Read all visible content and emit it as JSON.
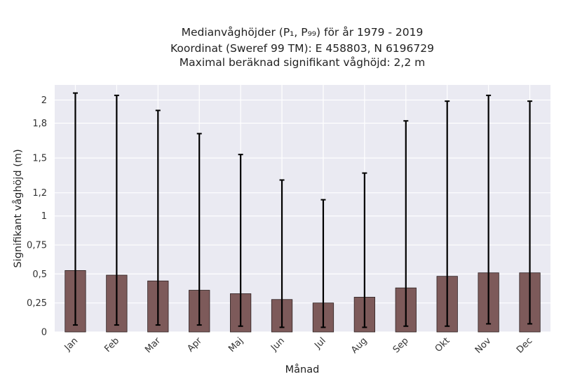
{
  "chart_data": {
    "type": "bar",
    "title_lines": [
      "Medianvåghöjder (P₁, P₉₉) för år 1979 - 2019",
      "Koordinat (Sweref 99 TM): E 458803, N 6196729",
      "Maximal beräknad signifikant våghöjd: 2,2 m"
    ],
    "xlabel": "Månad",
    "ylabel": "Signifikant våghöjd (m)",
    "categories": [
      "Jan",
      "Feb",
      "Mar",
      "Apr",
      "Maj",
      "Jun",
      "Jul",
      "Aug",
      "Sep",
      "Okt",
      "Nov",
      "Dec"
    ],
    "values": [
      0.53,
      0.49,
      0.44,
      0.36,
      0.33,
      0.28,
      0.25,
      0.3,
      0.38,
      0.48,
      0.51,
      0.51
    ],
    "error_low": [
      0.06,
      0.06,
      0.06,
      0.06,
      0.05,
      0.04,
      0.04,
      0.04,
      0.05,
      0.05,
      0.07,
      0.07
    ],
    "error_high": [
      2.06,
      2.04,
      1.91,
      1.71,
      1.53,
      1.31,
      1.14,
      1.37,
      1.82,
      1.99,
      2.04,
      1.99
    ],
    "yticks": [
      0,
      0.25,
      0.5,
      0.75,
      1,
      1.2,
      1.5,
      1.8,
      2
    ],
    "ytick_labels": [
      "0",
      "0,25",
      "0,5",
      "0,75",
      "1",
      "1,2",
      "1,5",
      "1,8",
      "2"
    ],
    "ylim": [
      0,
      2.13
    ],
    "grid": true,
    "colors": {
      "bar": "#7d5a5a",
      "bar_edge": "#2e2222",
      "errorbar": "#000000",
      "plot_background": "#eaeaf2",
      "grid": "#ffffff"
    }
  }
}
